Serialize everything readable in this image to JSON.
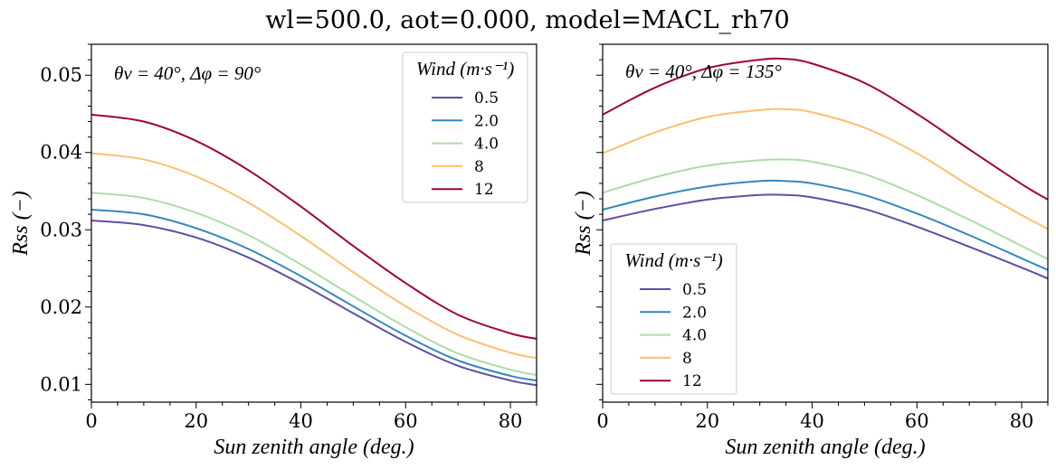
{
  "title": "wl=500.0, aot=0.000, model=MACL_rh70",
  "chart_data": [
    {
      "type": "line",
      "annotation": "θv = 40°,  Δφ = 90°",
      "xlabel": "Sun zenith angle (deg.)",
      "ylabel": "Rss (−)",
      "xlim": [
        0,
        85
      ],
      "ylim": [
        0.0077,
        0.054
      ],
      "xticks": [
        "0",
        "20",
        "40",
        "60",
        "80"
      ],
      "yticks": [
        "0.01",
        "0.02",
        "0.03",
        "0.04",
        "0.05"
      ],
      "legend_title": "Wind (m·s⁻¹)",
      "legend_position": "upper right",
      "x": [
        0,
        10,
        20,
        30,
        40,
        50,
        60,
        70,
        80,
        85
      ],
      "series": [
        {
          "name": "0.5",
          "color": "#5e4fa2",
          "values": [
            0.0312,
            0.0306,
            0.029,
            0.0264,
            0.023,
            0.0192,
            0.0155,
            0.0124,
            0.0105,
            0.0099
          ]
        },
        {
          "name": "2.0",
          "color": "#3288bd",
          "values": [
            0.0326,
            0.032,
            0.0302,
            0.0275,
            0.024,
            0.0201,
            0.0163,
            0.0131,
            0.0111,
            0.0105
          ]
        },
        {
          "name": "4.0",
          "color": "#abdda4",
          "values": [
            0.0348,
            0.0341,
            0.0322,
            0.0293,
            0.0255,
            0.0214,
            0.0174,
            0.014,
            0.0119,
            0.0112
          ]
        },
        {
          "name": "8",
          "color": "#fdbf6f",
          "values": [
            0.0399,
            0.0391,
            0.0369,
            0.0335,
            0.0292,
            0.0245,
            0.0201,
            0.0164,
            0.0141,
            0.0134
          ]
        },
        {
          "name": "12",
          "color": "#9e0142",
          "values": [
            0.0449,
            0.044,
            0.0415,
            0.0377,
            0.033,
            0.0279,
            0.0231,
            0.019,
            0.0166,
            0.0159
          ]
        }
      ]
    },
    {
      "type": "line",
      "annotation": "θv = 40°,  Δφ = 135°",
      "xlabel": "Sun zenith angle (deg.)",
      "ylabel": "Rss (−)",
      "xlim": [
        0,
        85
      ],
      "ylim": [
        0.0077,
        0.054
      ],
      "xticks": [
        "0",
        "20",
        "40",
        "60",
        "80"
      ],
      "yticks": [],
      "legend_title": "Wind (m·s⁻¹)",
      "legend_position": "lower left",
      "x": [
        0,
        10,
        20,
        30,
        35,
        40,
        50,
        60,
        70,
        80,
        85
      ],
      "series": [
        {
          "name": "0.5",
          "color": "#5e4fa2",
          "values": [
            0.0312,
            0.0327,
            0.0339,
            0.0345,
            0.0345,
            0.0342,
            0.0327,
            0.0304,
            0.0278,
            0.0251,
            0.0237
          ]
        },
        {
          "name": "2.0",
          "color": "#3288bd",
          "values": [
            0.0326,
            0.0343,
            0.0356,
            0.0363,
            0.0363,
            0.036,
            0.0345,
            0.0321,
            0.0293,
            0.0263,
            0.0248
          ]
        },
        {
          "name": "4.0",
          "color": "#abdda4",
          "values": [
            0.0348,
            0.0368,
            0.0383,
            0.039,
            0.0391,
            0.0388,
            0.0372,
            0.0345,
            0.0313,
            0.0279,
            0.0262
          ]
        },
        {
          "name": "8",
          "color": "#fdbf6f",
          "values": [
            0.0399,
            0.0426,
            0.0446,
            0.0455,
            0.0456,
            0.0452,
            0.0432,
            0.0399,
            0.0357,
            0.0319,
            0.0301
          ]
        },
        {
          "name": "12",
          "color": "#9e0142",
          "values": [
            0.0449,
            0.0484,
            0.0509,
            0.052,
            0.0521,
            0.0515,
            0.049,
            0.045,
            0.0404,
            0.0359,
            0.0339
          ]
        }
      ]
    }
  ]
}
